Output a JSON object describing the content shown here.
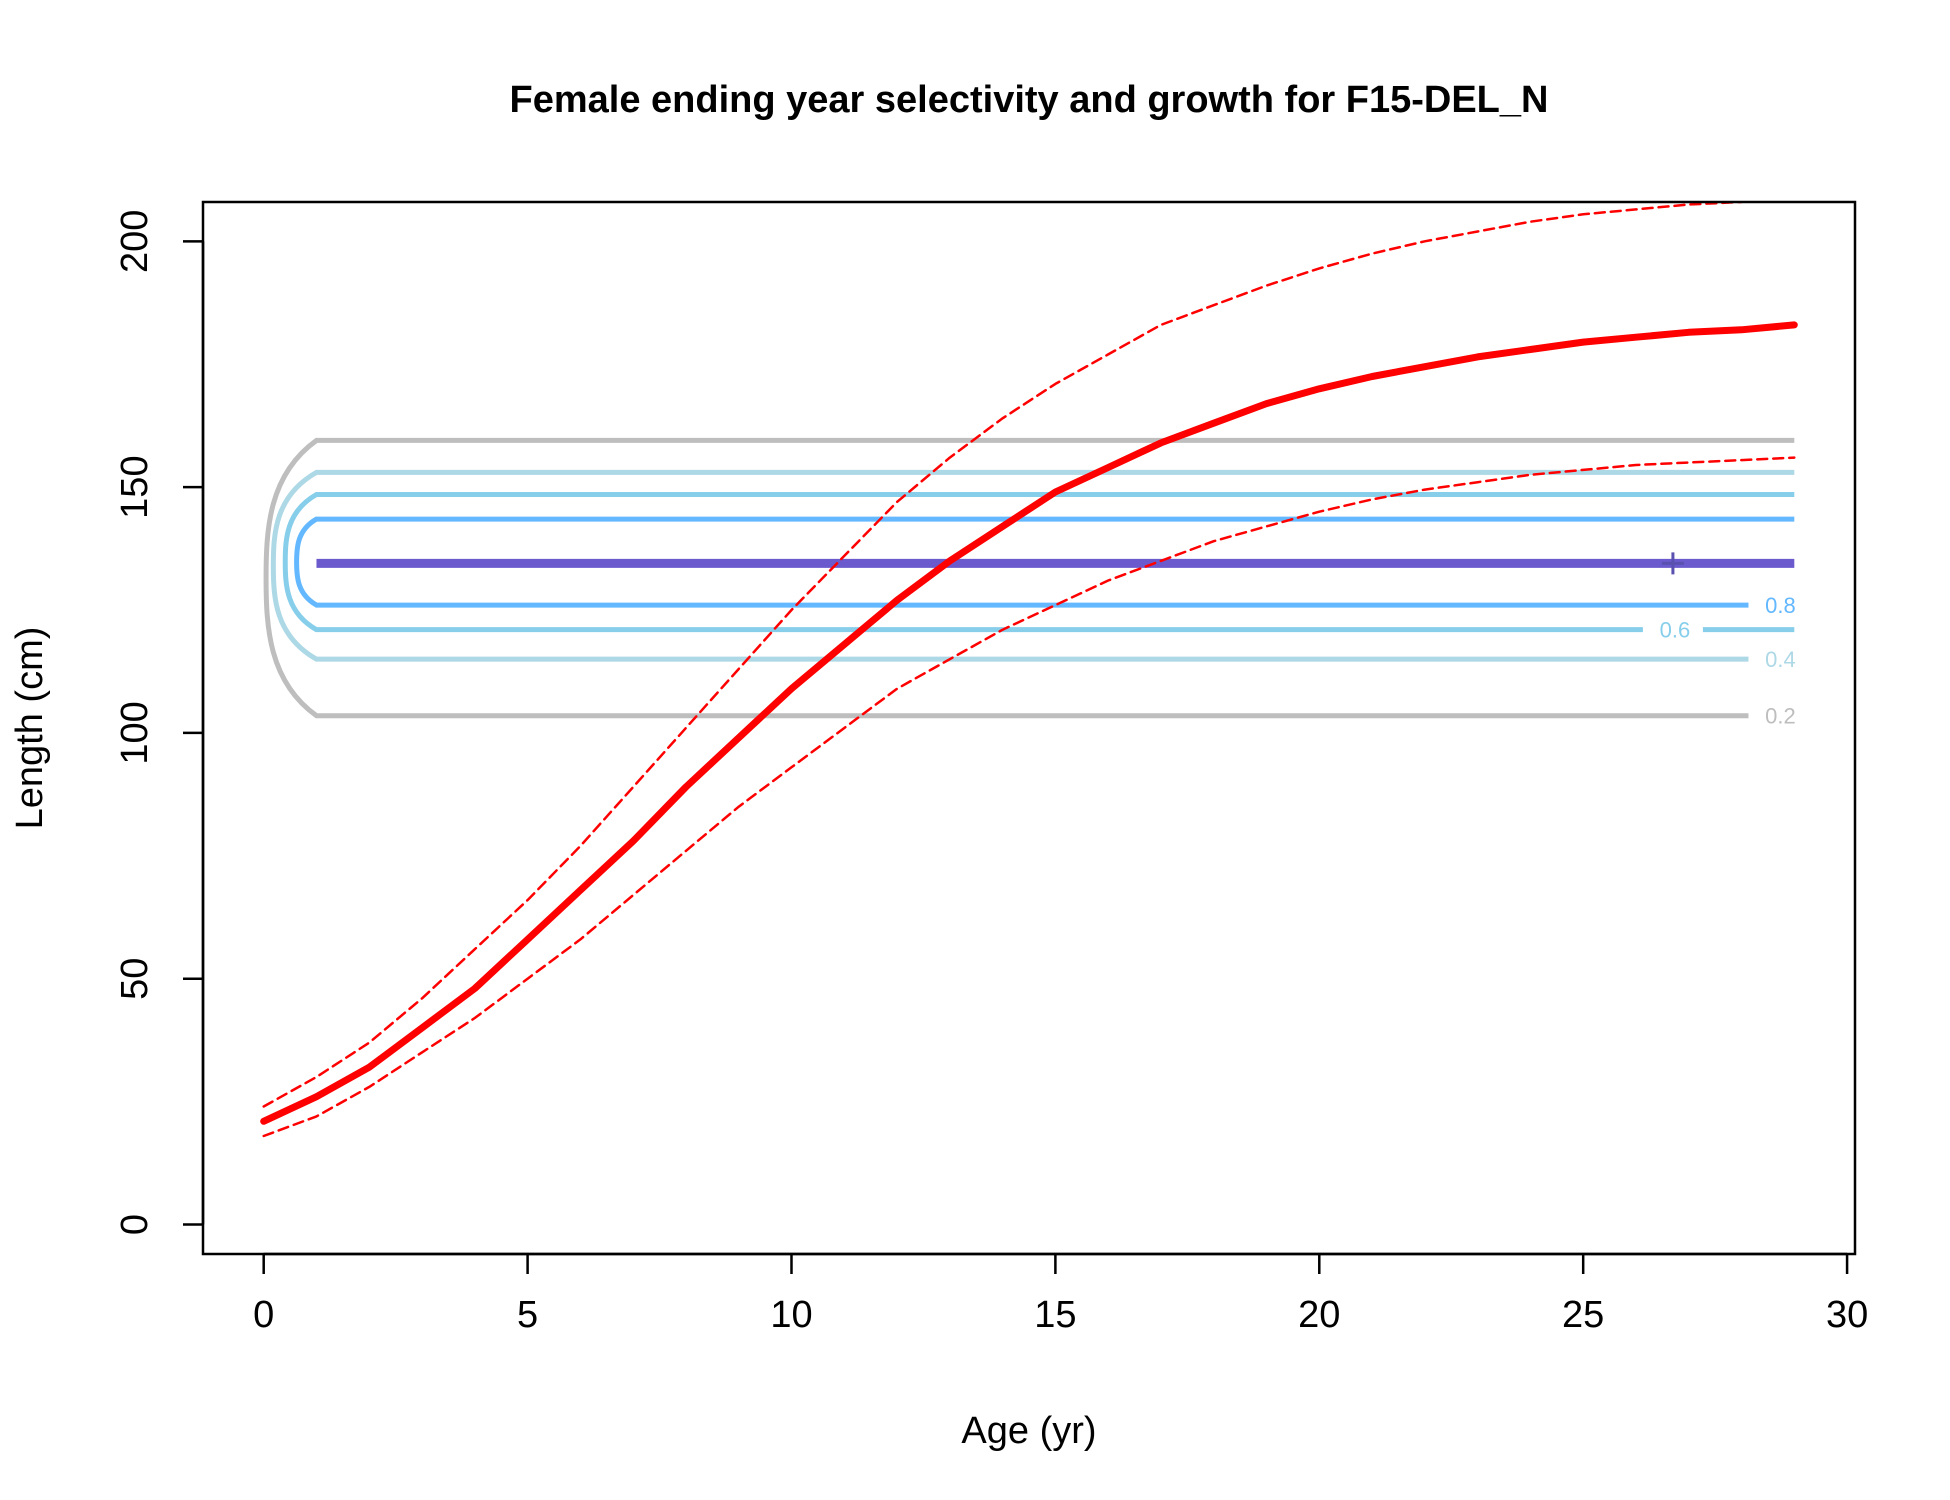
{
  "chart_data": {
    "type": "line",
    "title": "Female ending year selectivity and growth for F15-DEL_N",
    "xlabel": "Age (yr)",
    "ylabel": "Length (cm)",
    "xlim": [
      -1.15,
      30.15
    ],
    "ylim": [
      -6,
      208
    ],
    "xticks": [
      0,
      5,
      10,
      15,
      20,
      25,
      30
    ],
    "yticks": [
      0,
      50,
      100,
      150,
      200
    ],
    "grid": false,
    "legend": "none",
    "colors": {
      "growth": "#ff0000",
      "contour_0.2": "#bebebe",
      "contour_0.4": "#add8e6",
      "contour_0.6": "#87ceeb",
      "contour_0.8": "#63b8ff",
      "contour_peak": "#6a5acd",
      "axis": "#000000"
    },
    "series": [
      {
        "key": "mean",
        "style": "solid",
        "x": [
          0,
          1,
          2,
          3,
          4,
          5,
          6,
          7,
          8,
          9,
          10,
          11,
          12,
          13,
          14,
          15,
          16,
          17,
          18,
          19,
          20,
          21,
          22,
          23,
          24,
          25,
          26,
          27,
          28,
          29
        ],
        "y": [
          21,
          26,
          32,
          40,
          48,
          58,
          68,
          78,
          89,
          99,
          109,
          118,
          127,
          135,
          142,
          149,
          154,
          159,
          163,
          167,
          170,
          172.5,
          174.5,
          176.5,
          178,
          179.5,
          180.5,
          181.5,
          182,
          183
        ]
      },
      {
        "key": "upper",
        "style": "dashed",
        "x": [
          0,
          1,
          2,
          3,
          4,
          5,
          6,
          7,
          8,
          9,
          10,
          11,
          12,
          13,
          14,
          15,
          16,
          17,
          18,
          19,
          20,
          21,
          22,
          23,
          24,
          25,
          26,
          27,
          28
        ],
        "y": [
          24,
          30,
          37,
          46,
          56,
          66,
          77,
          89,
          101,
          113,
          125,
          136,
          147,
          156,
          164,
          171,
          177,
          183,
          187,
          191,
          194.5,
          197.5,
          200,
          202,
          204,
          205.5,
          206.5,
          207.5,
          208
        ]
      },
      {
        "key": "lower",
        "style": "dashed",
        "x": [
          0,
          1,
          2,
          3,
          4,
          5,
          6,
          7,
          8,
          9,
          10,
          11,
          12,
          13,
          14,
          15,
          16,
          17,
          18,
          19,
          20,
          21,
          22,
          23,
          24,
          25,
          26,
          27,
          28,
          29
        ],
        "y": [
          18,
          22,
          28,
          35,
          42,
          50,
          58,
          67,
          76,
          85,
          93,
          101,
          109,
          115,
          121,
          126,
          131,
          135,
          139,
          142,
          145,
          147.5,
          149.5,
          151,
          152.5,
          153.5,
          154.5,
          155,
          155.5,
          156
        ]
      }
    ],
    "contours": [
      {
        "level": 0.2,
        "label": "0.2",
        "y_low": 103.5,
        "y_high": 159.5,
        "x_start": 1,
        "x_end": 29,
        "label_x": 28.7
      },
      {
        "level": 0.4,
        "label": "0.4",
        "y_low": 115,
        "y_high": 153,
        "x_start": 1,
        "x_end": 29,
        "label_x": 28.7
      },
      {
        "level": 0.6,
        "label": "0.6",
        "y_low": 121,
        "y_high": 148.5,
        "x_start": 1,
        "x_end": 29,
        "label_x": 26.7
      },
      {
        "level": 0.8,
        "label": "0.8",
        "y_low": 126,
        "y_high": 143.5,
        "x_start": 1,
        "x_end": 29,
        "label_x": 28.7
      }
    ],
    "peak": {
      "y": 134.5,
      "x_start": 1,
      "x_end": 29,
      "marker_x": 26.7,
      "marker": "+"
    }
  }
}
